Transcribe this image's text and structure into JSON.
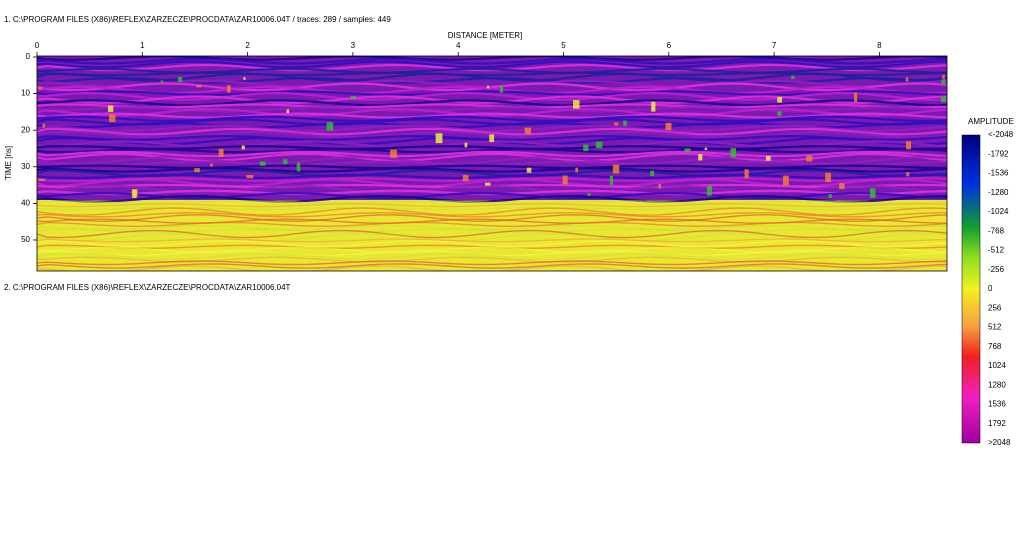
{
  "window": {
    "profiles": [
      {
        "title": "1. C:\\PROGRAM FILES (X86)\\REFLEX\\ZARZECZE\\PROCDATA\\ZAR10006.04T / traces: 289 / samples: 449",
        "x_axis_label": "DISTANCE [METER]",
        "x_ticks": [
          "0",
          "1",
          "2",
          "3",
          "4",
          "5",
          "6",
          "7",
          "8"
        ],
        "y_axis_label": "TIME [ns]",
        "y_ticks": [
          "0",
          "10",
          "20",
          "30",
          "40",
          "50"
        ]
      },
      {
        "title": "2. C:\\PROGRAM FILES (X86)\\REFLEX\\ZARZECZE\\PROCDATA\\ZAR10006.04T"
      }
    ],
    "colorbar": {
      "title": "AMPLITUDE",
      "labels": [
        "<-2048",
        "-1792",
        "-1536",
        "-1280",
        "-1024",
        "-768",
        "-512",
        "-256",
        "0",
        "256",
        "512",
        "768",
        "1024",
        "1280",
        "1536",
        "1792",
        ">2048"
      ]
    }
  }
}
